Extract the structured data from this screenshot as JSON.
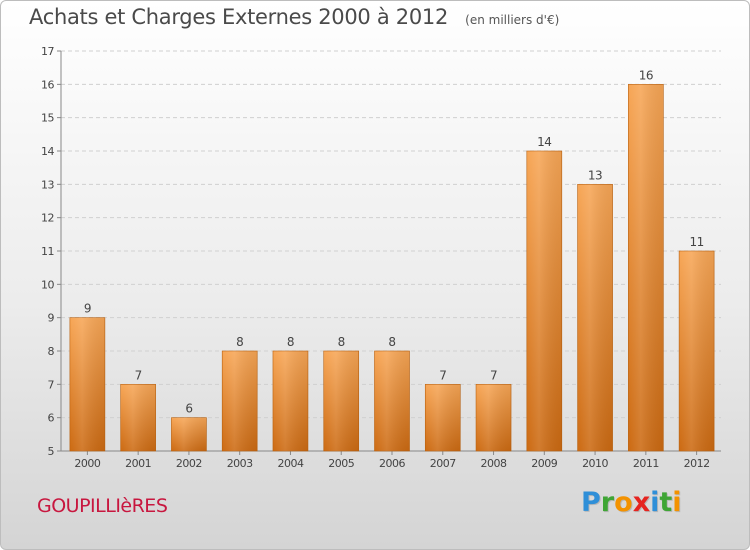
{
  "title": "Achats et Charges Externes 2000 à 2012",
  "unit": "(en milliers d'€)",
  "commune": "GOUPILLIèRES",
  "logo": {
    "letters": [
      {
        "ch": "P",
        "color": "#2f8fd8"
      },
      {
        "ch": "r",
        "color": "#3fa535"
      },
      {
        "ch": "o",
        "color": "#f39200"
      },
      {
        "ch": "x",
        "color": "#e52420"
      },
      {
        "ch": "i",
        "color": "#2f8fd8"
      },
      {
        "ch": "t",
        "color": "#3fa535"
      },
      {
        "ch": "i",
        "color": "#f39200"
      }
    ]
  },
  "chart_data": {
    "type": "bar",
    "categories": [
      "2000",
      "2001",
      "2002",
      "2003",
      "2004",
      "2005",
      "2006",
      "2007",
      "2008",
      "2009",
      "2010",
      "2011",
      "2012"
    ],
    "values": [
      9,
      7,
      6,
      8,
      8,
      8,
      8,
      7,
      7,
      14,
      13,
      16,
      11
    ],
    "data_labels": [
      "9",
      "7",
      "6",
      "8",
      "8",
      "8",
      "8",
      "7",
      "7",
      "14",
      "13",
      "16",
      "11"
    ],
    "title": "Achats et Charges Externes 2000 à 2012",
    "ylim": [
      5,
      17
    ],
    "yticks": [
      5,
      6,
      7,
      8,
      9,
      10,
      11,
      12,
      13,
      14,
      15,
      16,
      17
    ],
    "grid": true,
    "bar_color_top": "#f7a656",
    "bar_color_bottom": "#cc6a12"
  }
}
